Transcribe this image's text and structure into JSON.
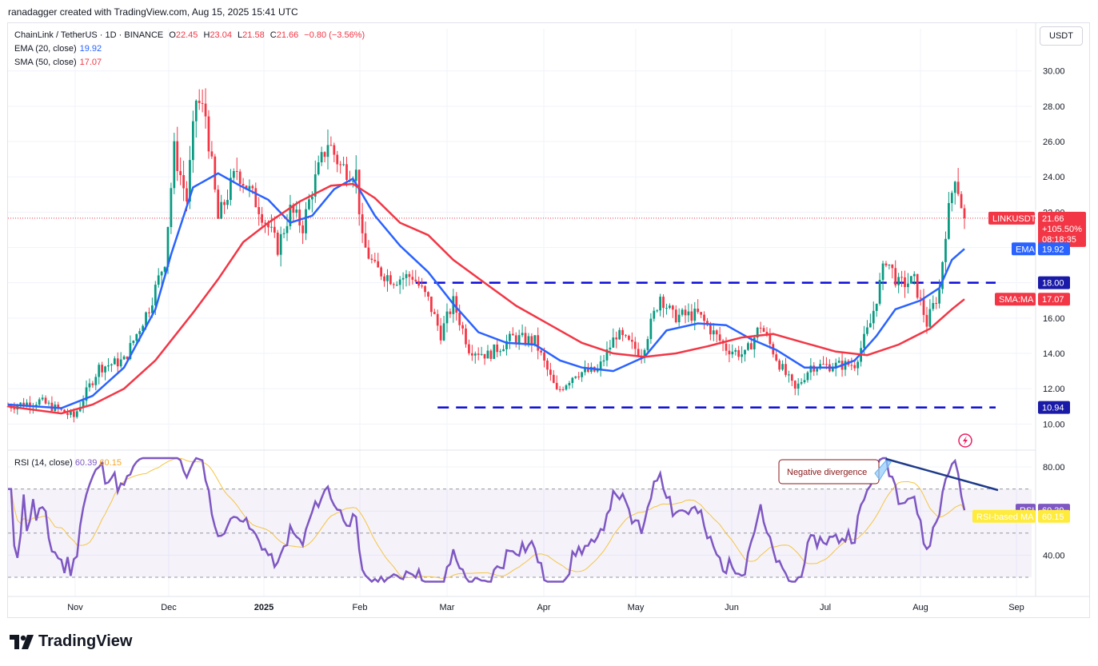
{
  "header": {
    "attribution": "ranadagger created with TradingView.com, Aug 15, 2025 15:41 UTC"
  },
  "legend": {
    "symbol_line": "ChainLink / TetherUS · 1D · BINANCE",
    "ohlc": {
      "o_label": "O",
      "o": "22.45",
      "h_label": "H",
      "h": "23.04",
      "l_label": "L",
      "l": "21.58",
      "c_label": "C",
      "c": "21.66",
      "change": "−0.80 (−3.56%)"
    },
    "ema_label": "EMA (20, close)",
    "ema_value": "19.92",
    "sma_label": "SMA (50, close)",
    "sma_value": "17.07"
  },
  "currency_button": "USDT",
  "rsi_legend": {
    "label": "RSI (14, close)",
    "value": "60.39",
    "ma_value": "60.15"
  },
  "annotation": {
    "negative_divergence": "Negative divergence"
  },
  "price_tags": {
    "symbol": "LINKUSDT",
    "price": "21.66",
    "change_pct": "+105.50%",
    "countdown": "08:18:35",
    "ema_label": "EMA",
    "ema": "19.92",
    "resistance": "18.00",
    "sma_label": "SMA:MA",
    "sma": "17.07",
    "support": "10.94"
  },
  "rsi_tags": {
    "rsi_label": "RSI",
    "rsi": "60.39",
    "ma_label": "RSI-based MA",
    "ma": "60.15"
  },
  "brand": {
    "name": "TradingView"
  },
  "colors": {
    "up": "#089981",
    "down": "#f23645",
    "ema": "#2962ff",
    "sma": "#f23645",
    "levels": "#0a0ad6",
    "rsi": "#7e57c2",
    "rsi_ma": "#f5c542",
    "trendline": "#1e3a8a"
  },
  "chart_data": [
    {
      "type": "candlestick",
      "title": "ChainLink / TetherUS · 1D · BINANCE",
      "x_ticks": [
        "Nov",
        "Dec",
        "2025",
        "Feb",
        "Mar",
        "Apr",
        "May",
        "Jun",
        "Jul",
        "Aug",
        "Sep"
      ],
      "y_ticks": [
        10,
        12,
        14,
        16,
        18,
        20,
        22,
        24,
        26,
        28,
        30
      ],
      "y_tick_labels": [
        "10.00",
        "12.00",
        "14.00",
        "16.00",
        "18.00",
        "20.00",
        "22.00",
        "24.00",
        "26.00",
        "28.00",
        "30.00"
      ],
      "ylim": [
        9.2,
        31.3
      ],
      "date_range": [
        "2024-10-14",
        "2025-08-15"
      ],
      "series": [
        {
          "name": "EMA (20, close)",
          "kind": "line",
          "color": "#2962ff",
          "points": [
            [
              "2024-10-14",
              11.1
            ],
            [
              "2024-10-31",
              10.9
            ],
            [
              "2024-11-10",
              11.6
            ],
            [
              "2024-11-20",
              13.2
            ],
            [
              "2024-11-30",
              16.5
            ],
            [
              "2024-12-05",
              19.6
            ],
            [
              "2024-12-12",
              23.4
            ],
            [
              "2024-12-20",
              24.2
            ],
            [
              "2024-12-27",
              23.5
            ],
            [
              "2025-01-05",
              22.7
            ],
            [
              "2025-01-12",
              21.4
            ],
            [
              "2025-01-19",
              21.8
            ],
            [
              "2025-01-26",
              23.3
            ],
            [
              "2025-02-01",
              23.9
            ],
            [
              "2025-02-08",
              21.8
            ],
            [
              "2025-02-16",
              20.1
            ],
            [
              "2025-02-25",
              18.6
            ],
            [
              "2025-03-05",
              16.8
            ],
            [
              "2025-03-13",
              15.2
            ],
            [
              "2025-03-22",
              14.6
            ],
            [
              "2025-03-31",
              14.5
            ],
            [
              "2025-04-08",
              13.6
            ],
            [
              "2025-04-15",
              13.2
            ],
            [
              "2025-04-25",
              13.0
            ],
            [
              "2025-05-05",
              13.8
            ],
            [
              "2025-05-12",
              15.3
            ],
            [
              "2025-05-22",
              15.7
            ],
            [
              "2025-05-31",
              15.6
            ],
            [
              "2025-06-08",
              14.8
            ],
            [
              "2025-06-16",
              14.2
            ],
            [
              "2025-06-25",
              13.2
            ],
            [
              "2025-07-05",
              13.2
            ],
            [
              "2025-07-11",
              13.6
            ],
            [
              "2025-07-18",
              15.0
            ],
            [
              "2025-07-24",
              16.5
            ],
            [
              "2025-08-01",
              17.0
            ],
            [
              "2025-08-07",
              17.7
            ],
            [
              "2025-08-11",
              19.3
            ],
            [
              "2025-08-15",
              19.92
            ]
          ]
        },
        {
          "name": "SMA (50, close)",
          "kind": "line",
          "color": "#f23645",
          "points": [
            [
              "2024-10-14",
              11.0
            ],
            [
              "2024-10-31",
              10.6
            ],
            [
              "2024-11-10",
              11.1
            ],
            [
              "2024-11-20",
              12.0
            ],
            [
              "2024-11-30",
              13.6
            ],
            [
              "2024-12-12",
              16.3
            ],
            [
              "2024-12-20",
              18.2
            ],
            [
              "2024-12-28",
              20.3
            ],
            [
              "2025-01-05",
              21.4
            ],
            [
              "2025-01-15",
              22.6
            ],
            [
              "2025-01-25",
              23.5
            ],
            [
              "2025-02-01",
              23.6
            ],
            [
              "2025-02-08",
              22.8
            ],
            [
              "2025-02-16",
              21.4
            ],
            [
              "2025-02-25",
              20.7
            ],
            [
              "2025-03-05",
              19.3
            ],
            [
              "2025-03-15",
              18.0
            ],
            [
              "2025-03-25",
              16.7
            ],
            [
              "2025-04-05",
              15.6
            ],
            [
              "2025-04-15",
              14.6
            ],
            [
              "2025-04-25",
              14.0
            ],
            [
              "2025-05-05",
              13.8
            ],
            [
              "2025-05-15",
              14.0
            ],
            [
              "2025-05-25",
              14.4
            ],
            [
              "2025-06-05",
              14.9
            ],
            [
              "2025-06-15",
              15.1
            ],
            [
              "2025-06-25",
              14.6
            ],
            [
              "2025-07-05",
              14.1
            ],
            [
              "2025-07-15",
              13.9
            ],
            [
              "2025-07-25",
              14.5
            ],
            [
              "2025-08-04",
              15.4
            ],
            [
              "2025-08-11",
              16.5
            ],
            [
              "2025-08-15",
              17.07
            ]
          ]
        }
      ],
      "levels": [
        {
          "label": "18.00",
          "value": 18.0,
          "style": "dashed",
          "from": "2025-02-21"
        },
        {
          "label": "10.94",
          "value": 10.94,
          "style": "dashed",
          "from": "2025-02-28"
        }
      ],
      "last_price": 21.66
    },
    {
      "type": "line",
      "title": "RSI (14, close)",
      "y_ticks": [
        40,
        60,
        80
      ],
      "y_tick_labels": [
        "40.00",
        "60.00",
        "80.00"
      ],
      "ylim": [
        22,
        88
      ],
      "band": [
        30,
        70
      ],
      "series": [
        {
          "name": "RSI",
          "color": "#7e57c2",
          "last": 60.39
        },
        {
          "name": "RSI-based MA",
          "color": "#f5c542",
          "last": 60.15
        }
      ],
      "annotation": {
        "text": "Negative divergence"
      }
    }
  ]
}
